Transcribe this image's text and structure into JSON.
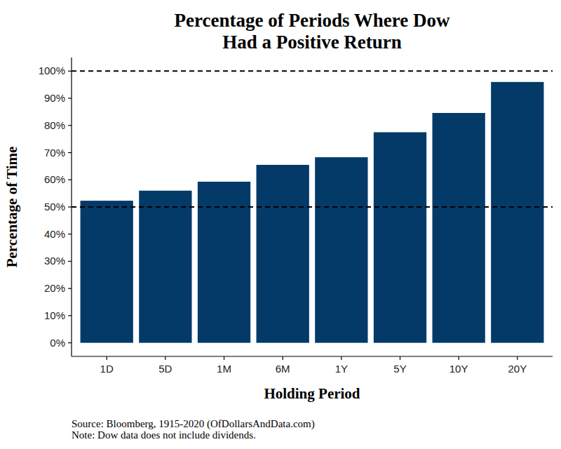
{
  "chart_data": {
    "type": "bar",
    "title": "Percentage of Periods Where Dow Had a Positive Return",
    "x_label": "Holding Period",
    "y_label": "Percentage of Time",
    "annotations": [
      "Source: Bloomberg, 1915-2020 (OfDollarsAndData.com)",
      "Note: Dow data does not include dividends."
    ],
    "categories": [
      "1D",
      "5D",
      "1M",
      "6M",
      "1Y",
      "5Y",
      "10Y",
      "20Y"
    ],
    "values": [
      52.3,
      56,
      59.3,
      65.5,
      68.3,
      77.5,
      84.6,
      96
    ],
    "color": "#033a68",
    "ylim": [
      -5,
      105
    ],
    "yticks": [
      {
        "value": 0,
        "label": "0%"
      },
      {
        "value": 10,
        "label": "10%"
      },
      {
        "value": 20,
        "label": "20%"
      },
      {
        "value": 30,
        "label": "30%"
      },
      {
        "value": 40,
        "label": "40%"
      },
      {
        "value": 50,
        "label": "50%"
      },
      {
        "value": 60,
        "label": "60%"
      },
      {
        "value": 70,
        "label": "70%"
      },
      {
        "value": 80,
        "label": "80%"
      },
      {
        "value": 90,
        "label": "90%"
      },
      {
        "value": 100,
        "label": "100%"
      }
    ],
    "reference_lines": [
      100,
      50
    ],
    "grid": false
  }
}
